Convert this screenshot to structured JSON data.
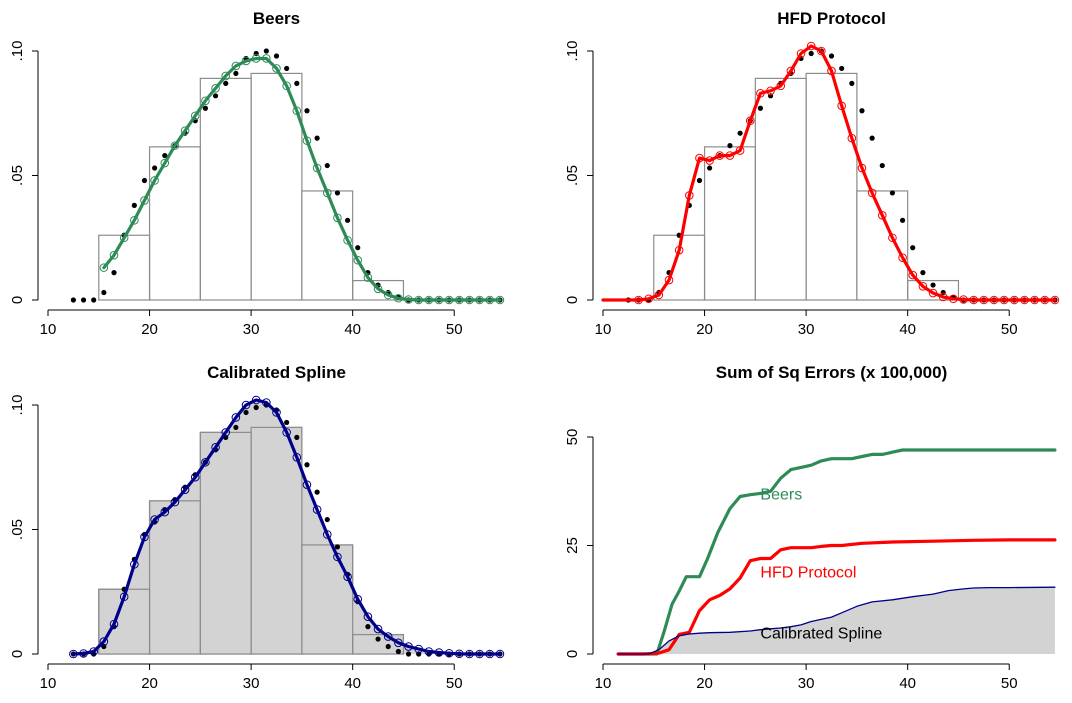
{
  "colors": {
    "beers": "#2e8b57",
    "hfd": "#ff0000",
    "spline": "#00008b",
    "fill": "#d3d3d3",
    "bin": "#8c8c8c",
    "dots": "#000000"
  },
  "chart_data": [
    {
      "type": "line",
      "title": "Beers",
      "xlim": [
        10,
        55
      ],
      "ylim": [
        0,
        0.1
      ],
      "x_ticks": [
        10,
        20,
        30,
        40,
        50
      ],
      "y_ticks": [
        0,
        0.05,
        0.1
      ],
      "y_tick_labels": [
        "0",
        ".05",
        ".10"
      ],
      "histogram": {
        "bin_edges": [
          15,
          20,
          25,
          30,
          35,
          40,
          45
        ],
        "values": [
          0.026,
          0.0615,
          0.089,
          0.091,
          0.0438,
          0.0078
        ]
      },
      "dots": {
        "x": [
          12.5,
          13.5,
          14.5,
          15.5,
          16.5,
          17.5,
          18.5,
          19.5,
          20.5,
          21.5,
          22.5,
          23.5,
          24.5,
          25.5,
          26.5,
          27.5,
          28.5,
          29.5,
          30.5,
          31.5,
          32.5,
          33.5,
          34.5,
          35.5,
          36.5,
          37.5,
          38.5,
          39.5,
          40.5,
          41.5,
          42.5,
          43.5,
          44.5,
          45.5,
          46.5,
          47.5,
          48.5,
          49.5,
          50.5,
          51.5,
          52.5,
          53.5,
          54.5
        ],
        "y": [
          0,
          0,
          0,
          0.003,
          0.011,
          0.026,
          0.038,
          0.048,
          0.053,
          0.058,
          0.062,
          0.067,
          0.072,
          0.077,
          0.082,
          0.087,
          0.091,
          0.097,
          0.099,
          0.1,
          0.098,
          0.093,
          0.087,
          0.076,
          0.065,
          0.054,
          0.043,
          0.032,
          0.021,
          0.011,
          0.006,
          0.003,
          0.001,
          0,
          0,
          0,
          0,
          0,
          0,
          0,
          0,
          0,
          0
        ]
      },
      "series": [
        {
          "color": "#2e8b57",
          "x": [
            15.5,
            16.5,
            17.5,
            18.5,
            19.5,
            20.5,
            21.5,
            22.5,
            23.5,
            24.5,
            25.5,
            26.5,
            27.5,
            28.5,
            29.5,
            30.5,
            31.5,
            32.5,
            33.5,
            34.5,
            35.5,
            36.5,
            37.5,
            38.5,
            39.5,
            40.5,
            41.5,
            42.5,
            43.5,
            44.5,
            45.5,
            46.5,
            47.5,
            48.5,
            49.5,
            50.5,
            51.5,
            52.5,
            53.5,
            54.5
          ],
          "y": [
            0.013,
            0.018,
            0.025,
            0.032,
            0.04,
            0.048,
            0.055,
            0.062,
            0.068,
            0.074,
            0.08,
            0.085,
            0.09,
            0.094,
            0.096,
            0.097,
            0.097,
            0.093,
            0.086,
            0.076,
            0.064,
            0.053,
            0.043,
            0.033,
            0.024,
            0.016,
            0.009,
            0.0045,
            0.002,
            0.0007,
            0.0002,
            0,
            0,
            0,
            0,
            0,
            0,
            0,
            0,
            0
          ]
        }
      ]
    },
    {
      "type": "line",
      "title": "HFD Protocol",
      "xlim": [
        10,
        55
      ],
      "ylim": [
        0,
        0.1
      ],
      "x_ticks": [
        10,
        20,
        30,
        40,
        50
      ],
      "y_ticks": [
        0,
        0.05,
        0.1
      ],
      "y_tick_labels": [
        "0",
        ".05",
        ".10"
      ],
      "histogram": {
        "bin_edges": [
          15,
          20,
          25,
          30,
          35,
          40,
          45
        ],
        "values": [
          0.026,
          0.0615,
          0.089,
          0.091,
          0.0438,
          0.0078
        ]
      },
      "dots": {
        "x": [
          12.5,
          13.5,
          14.5,
          15.5,
          16.5,
          17.5,
          18.5,
          19.5,
          20.5,
          21.5,
          22.5,
          23.5,
          24.5,
          25.5,
          26.5,
          27.5,
          28.5,
          29.5,
          30.5,
          31.5,
          32.5,
          33.5,
          34.5,
          35.5,
          36.5,
          37.5,
          38.5,
          39.5,
          40.5,
          41.5,
          42.5,
          43.5,
          44.5,
          45.5,
          46.5,
          47.5,
          48.5,
          49.5,
          50.5,
          51.5,
          52.5,
          53.5,
          54.5
        ],
        "y": [
          0,
          0,
          0,
          0.003,
          0.011,
          0.026,
          0.038,
          0.048,
          0.053,
          0.058,
          0.062,
          0.067,
          0.072,
          0.077,
          0.082,
          0.087,
          0.091,
          0.097,
          0.099,
          0.1,
          0.098,
          0.093,
          0.087,
          0.076,
          0.065,
          0.054,
          0.043,
          0.032,
          0.021,
          0.011,
          0.006,
          0.003,
          0.001,
          0,
          0,
          0,
          0,
          0,
          0,
          0,
          0,
          0,
          0
        ]
      },
      "series": [
        {
          "color": "#ff0000",
          "x": [
            10,
            11.5,
            12.5,
            13.5,
            14.5,
            15.5,
            16.5,
            17.5,
            18.5,
            19.5,
            20.5,
            21.5,
            22.5,
            23.5,
            24.5,
            25.5,
            26.5,
            27.5,
            28.5,
            29.5,
            30.5,
            31.5,
            32.5,
            33.5,
            34.5,
            35.5,
            36.5,
            37.5,
            38.5,
            39.5,
            40.5,
            41.5,
            42.5,
            43.5,
            44.5,
            45.5,
            46.5,
            47.5,
            48.5,
            49.5,
            50.5,
            51.5,
            52.5,
            53.5,
            54.5
          ],
          "y": [
            0,
            0,
            0,
            0,
            0.0005,
            0.002,
            0.008,
            0.02,
            0.042,
            0.057,
            0.056,
            0.058,
            0.058,
            0.06,
            0.072,
            0.083,
            0.084,
            0.086,
            0.092,
            0.099,
            0.102,
            0.1,
            0.092,
            0.078,
            0.065,
            0.053,
            0.043,
            0.034,
            0.025,
            0.017,
            0.01,
            0.0055,
            0.0028,
            0.0012,
            0.0005,
            0.0002,
            0,
            0,
            0,
            0,
            0,
            0,
            0,
            0,
            0
          ],
          "markers_from": 3
        }
      ]
    },
    {
      "type": "line",
      "title": "Calibrated Spline",
      "xlim": [
        10,
        55
      ],
      "ylim": [
        0,
        0.1
      ],
      "x_ticks": [
        10,
        20,
        30,
        40,
        50
      ],
      "y_ticks": [
        0,
        0.05,
        0.1
      ],
      "y_tick_labels": [
        "0",
        ".05",
        ".10"
      ],
      "histogram": {
        "bin_edges": [
          15,
          20,
          25,
          30,
          35,
          40,
          45
        ],
        "values": [
          0.026,
          0.0615,
          0.089,
          0.091,
          0.0438,
          0.0078
        ],
        "filled": true
      },
      "dots": {
        "x": [
          12.5,
          13.5,
          14.5,
          15.5,
          16.5,
          17.5,
          18.5,
          19.5,
          20.5,
          21.5,
          22.5,
          23.5,
          24.5,
          25.5,
          26.5,
          27.5,
          28.5,
          29.5,
          30.5,
          31.5,
          32.5,
          33.5,
          34.5,
          35.5,
          36.5,
          37.5,
          38.5,
          39.5,
          40.5,
          41.5,
          42.5,
          43.5,
          44.5,
          45.5,
          46.5,
          47.5,
          48.5,
          49.5,
          50.5,
          51.5,
          52.5,
          53.5,
          54.5
        ],
        "y": [
          0,
          0,
          0,
          0.003,
          0.011,
          0.026,
          0.038,
          0.048,
          0.053,
          0.058,
          0.062,
          0.067,
          0.072,
          0.077,
          0.082,
          0.087,
          0.091,
          0.097,
          0.099,
          0.1,
          0.098,
          0.093,
          0.087,
          0.076,
          0.065,
          0.054,
          0.043,
          0.032,
          0.021,
          0.011,
          0.006,
          0.003,
          0.001,
          0,
          0,
          0,
          0,
          0,
          0,
          0,
          0,
          0,
          0
        ]
      },
      "series": [
        {
          "color": "#00008b",
          "x": [
            12.5,
            13.5,
            14.5,
            15.5,
            16.5,
            17.5,
            18.5,
            19.5,
            20.5,
            21.5,
            22.5,
            23.5,
            24.5,
            25.5,
            26.5,
            27.5,
            28.5,
            29.5,
            30.5,
            31.5,
            32.5,
            33.5,
            34.5,
            35.5,
            36.5,
            37.5,
            38.5,
            39.5,
            40.5,
            41.5,
            42.5,
            43.5,
            44.5,
            45.5,
            46.5,
            47.5,
            48.5,
            49.5,
            50.5,
            51.5,
            52.5,
            53.5,
            54.5
          ],
          "y": [
            0,
            0.0002,
            0.001,
            0.005,
            0.012,
            0.023,
            0.036,
            0.047,
            0.054,
            0.057,
            0.061,
            0.066,
            0.071,
            0.077,
            0.083,
            0.089,
            0.095,
            0.1,
            0.102,
            0.101,
            0.097,
            0.089,
            0.079,
            0.068,
            0.058,
            0.048,
            0.039,
            0.031,
            0.022,
            0.015,
            0.01,
            0.007,
            0.0045,
            0.003,
            0.002,
            0.001,
            0.0006,
            0.0003,
            0.0001,
            0,
            0,
            0,
            0
          ]
        }
      ]
    },
    {
      "type": "line",
      "title": "Sum of Sq Errors (x 100,000)",
      "xlim": [
        10,
        55
      ],
      "ylim": [
        0,
        50
      ],
      "x_ticks": [
        10,
        20,
        30,
        40,
        50
      ],
      "y_ticks": [
        0,
        25,
        50
      ],
      "y_tick_labels": [
        "0",
        "25",
        "50"
      ],
      "series": [
        {
          "name": "Beers",
          "color": "#2e8b57",
          "label_at": [
            25.5,
            37
          ],
          "x": [
            11.5,
            14.5,
            15.3,
            16,
            16.8,
            17.5,
            18.2,
            19.5,
            20.3,
            21.3,
            22.5,
            23.5,
            24.5,
            25.5,
            26.5,
            27.5,
            28.5,
            29.5,
            30.5,
            31.5,
            32.5,
            33.5,
            34.5,
            35.5,
            36.5,
            37.5,
            38.5,
            39.5,
            40.5,
            42.5,
            44.5,
            47,
            50,
            54.5
          ],
          "y": [
            0,
            0,
            0,
            5,
            11.5,
            14.5,
            17.8,
            17.8,
            22,
            28,
            33.5,
            36.3,
            36.7,
            37,
            37.5,
            40.5,
            42.5,
            43,
            43.5,
            44.5,
            45,
            45,
            45,
            45.5,
            46,
            46,
            46.5,
            47,
            47,
            47,
            47,
            47,
            47,
            47
          ]
        },
        {
          "name": "HFD Protocol",
          "color": "#ff0000",
          "label_at": [
            25.5,
            19
          ],
          "x": [
            11.5,
            14,
            15.5,
            16.5,
            17.5,
            18.5,
            19.5,
            20.5,
            21.5,
            22.5,
            23.5,
            24.5,
            25.5,
            26.5,
            27.5,
            28.5,
            29.5,
            30.5,
            31.5,
            32.5,
            33.5,
            35.5,
            38.5,
            42.5,
            46.5,
            50,
            54.5
          ],
          "y": [
            0,
            0,
            0.2,
            1,
            4.5,
            5,
            10,
            12.5,
            13.5,
            15,
            17.5,
            21.5,
            22,
            22,
            24,
            24.5,
            24.5,
            24.5,
            24.8,
            25,
            25,
            25.5,
            25.8,
            26,
            26.2,
            26.3,
            26.3
          ]
        },
        {
          "name": "Calibrated Spline",
          "color": "#00008b",
          "filled": true,
          "label_at": [
            25.5,
            5
          ],
          "x": [
            11.5,
            14.5,
            15.5,
            16.5,
            17.5,
            18.5,
            19.5,
            20.5,
            22.5,
            24.5,
            25.5,
            26.5,
            27.5,
            28.5,
            29.5,
            30.5,
            32.5,
            33.5,
            35,
            36.5,
            38.5,
            40.5,
            42.5,
            44,
            45.5,
            46.5,
            48,
            50,
            54.5
          ],
          "y": [
            0,
            0,
            1,
            3,
            4.2,
            4.6,
            4.8,
            4.9,
            5,
            5.3,
            5.6,
            5.8,
            6,
            6.3,
            6.7,
            7.5,
            8.5,
            9.5,
            11,
            12,
            12.5,
            13.2,
            13.8,
            14.6,
            15,
            15.2,
            15.3,
            15.3,
            15.4
          ]
        }
      ]
    }
  ]
}
